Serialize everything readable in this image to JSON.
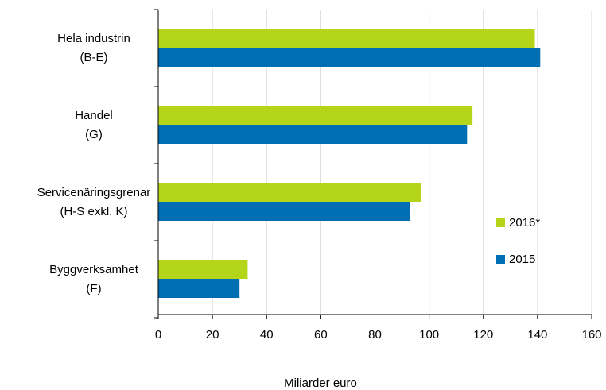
{
  "chart_data": {
    "type": "bar",
    "orientation": "horizontal",
    "categories": [
      [
        "Hela industrin",
        "(B-E)"
      ],
      [
        "Handel",
        "(G)"
      ],
      [
        "Servicenäringsgrenar",
        "(H-S exkl. K)"
      ],
      [
        "Byggverksamhet",
        "(F)"
      ]
    ],
    "series": [
      {
        "name": "2016*",
        "color": "#b4d51a",
        "values": [
          139,
          116,
          97,
          33
        ]
      },
      {
        "name": "2015",
        "color": "#006eb3",
        "values": [
          141,
          114,
          93,
          30
        ]
      }
    ],
    "xlabel": "Miliarder euro",
    "xlim": [
      0,
      160
    ],
    "xticks": [
      0,
      20,
      40,
      60,
      80,
      100,
      120,
      140,
      160
    ],
    "grid": "vertical",
    "grid_color": "#d9d9d9",
    "legend_position": "right"
  }
}
